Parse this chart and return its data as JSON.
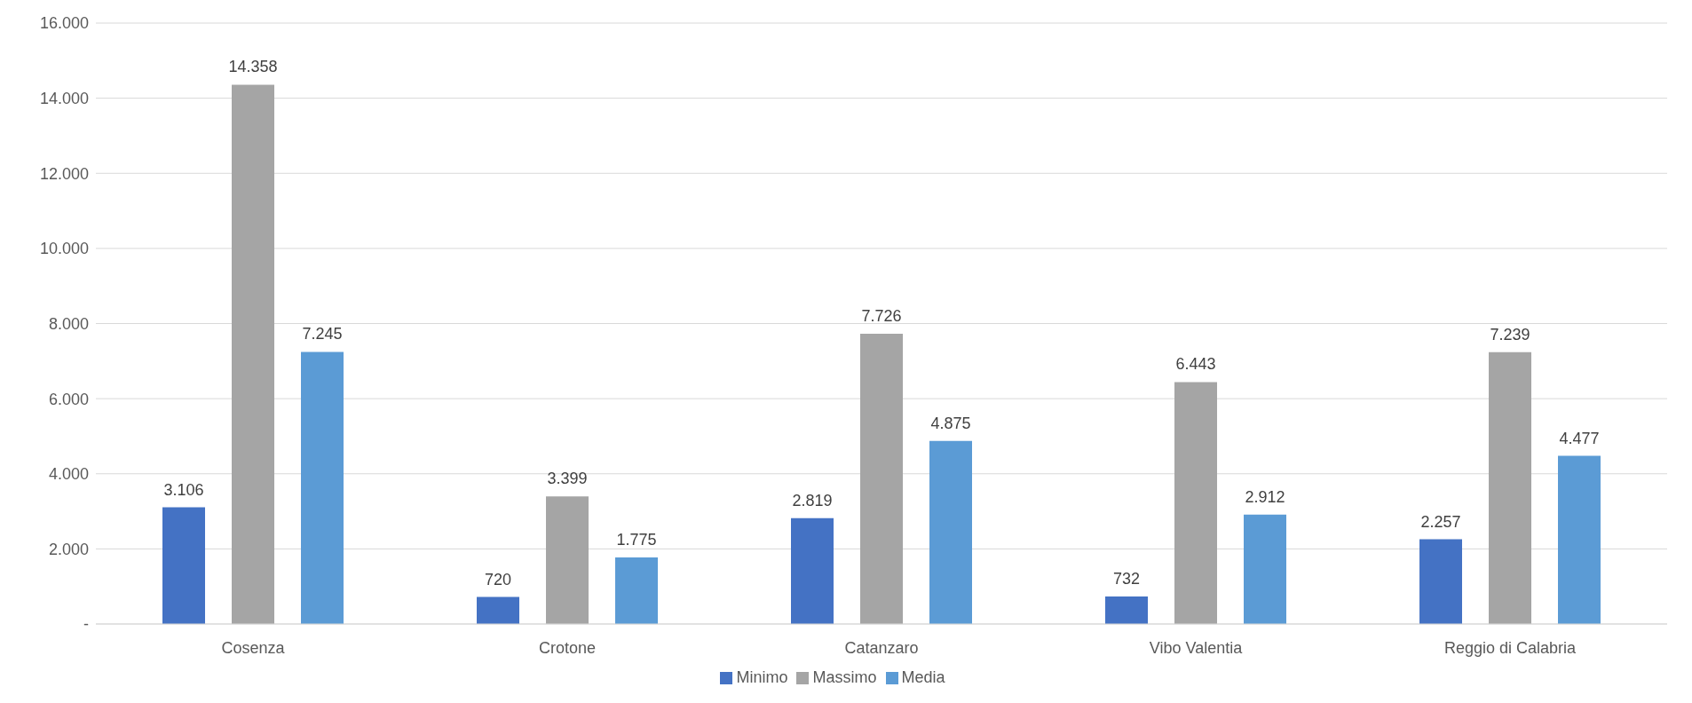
{
  "chart_data": {
    "type": "bar",
    "categories": [
      "Cosenza",
      "Crotone",
      "Catanzaro",
      "Vibo Valentia",
      "Reggio di Calabria"
    ],
    "series": [
      {
        "name": "Minimo",
        "color": "#4472c4",
        "values": [
          3106,
          720,
          2819,
          732,
          2257
        ],
        "value_labels": [
          "3.106",
          "720",
          "2.819",
          "732",
          "2.257"
        ]
      },
      {
        "name": "Massimo",
        "color": "#a5a5a5",
        "values": [
          14358,
          3399,
          7726,
          6443,
          7239
        ],
        "value_labels": [
          "14.358",
          "3.399",
          "7.726",
          "6.443",
          "7.239"
        ]
      },
      {
        "name": "Media",
        "color": "#5b9bd5",
        "values": [
          7245,
          1775,
          4875,
          2912,
          4477
        ],
        "value_labels": [
          "7.245",
          "1.775",
          "4.875",
          "2.912",
          "4.477"
        ]
      }
    ],
    "ylim": [
      0,
      16000
    ],
    "yticks": [
      {
        "value": 0,
        "label": "-"
      },
      {
        "value": 2000,
        "label": "2.000"
      },
      {
        "value": 4000,
        "label": "4.000"
      },
      {
        "value": 6000,
        "label": "6.000"
      },
      {
        "value": 8000,
        "label": "8.000"
      },
      {
        "value": 10000,
        "label": "10.000"
      },
      {
        "value": 12000,
        "label": "12.000"
      },
      {
        "value": 14000,
        "label": "14.000"
      },
      {
        "value": 16000,
        "label": "16.000"
      }
    ],
    "grid": "y",
    "legend": "bottom"
  }
}
